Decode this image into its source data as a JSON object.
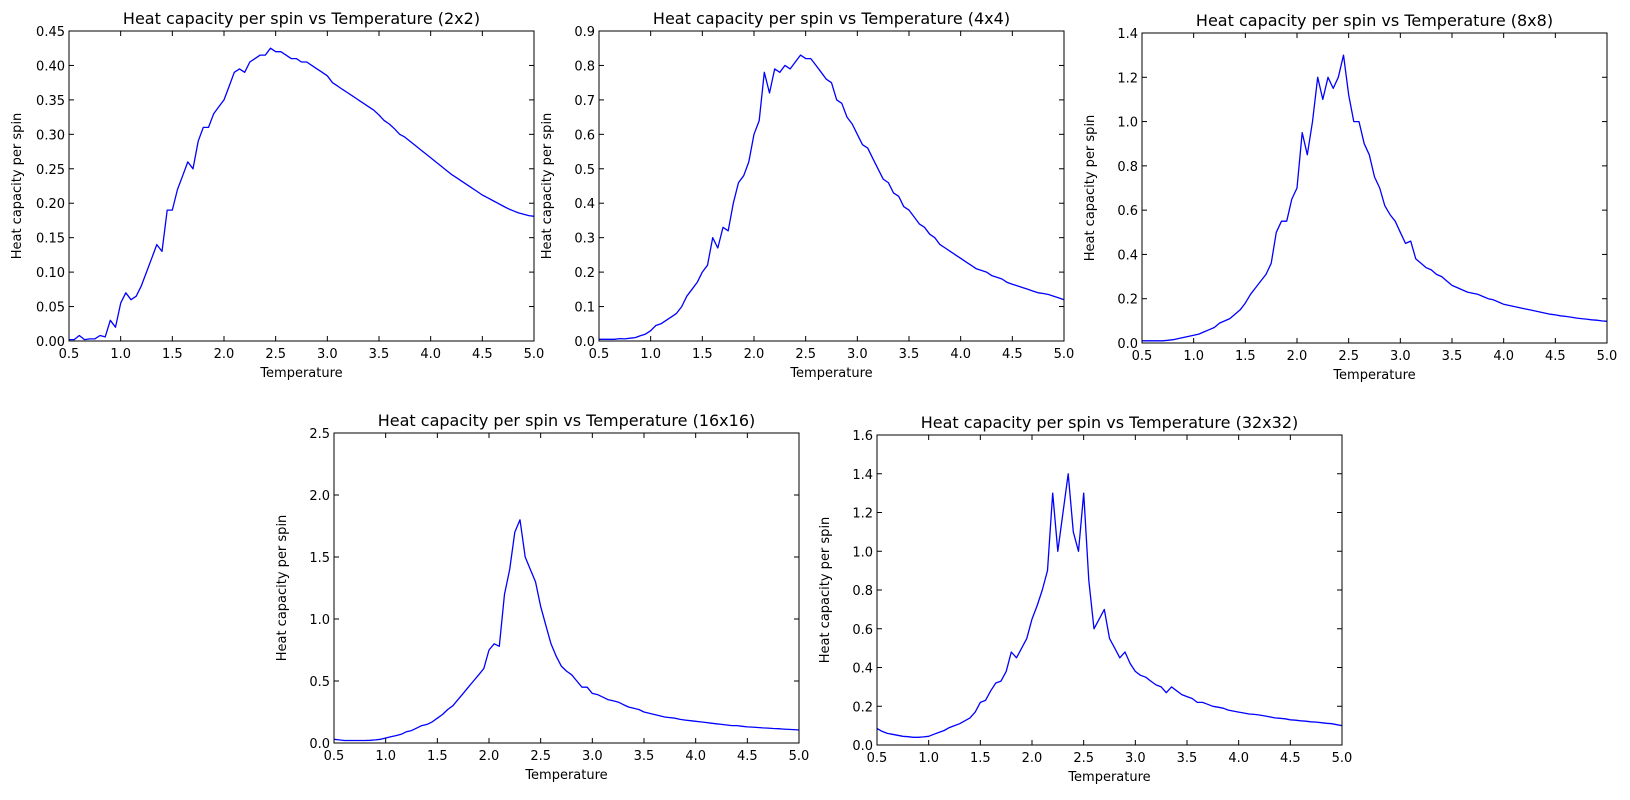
{
  "chart_data": [
    {
      "type": "line",
      "title": "Heat capacity per spin vs Temperature (2x2)",
      "xlabel": "Temperature",
      "ylabel": "Heat capacity per spin",
      "xlim": [
        0.5,
        5.0
      ],
      "ylim": [
        0,
        0.45
      ],
      "xticks": [
        "0.5",
        "1.0",
        "1.5",
        "2.0",
        "2.5",
        "3.0",
        "3.5",
        "4.0",
        "4.5",
        "5.0"
      ],
      "yticks": [
        "0.00",
        "0.05",
        "0.10",
        "0.15",
        "0.20",
        "0.25",
        "0.30",
        "0.35",
        "0.40",
        "0.45"
      ],
      "color": "#0000ff",
      "x_start": 0.5,
      "x_step": 0.05,
      "values": [
        0.002,
        0.002,
        0.008,
        0.002,
        0.003,
        0.003,
        0.008,
        0.006,
        0.03,
        0.02,
        0.055,
        0.07,
        0.06,
        0.065,
        0.08,
        0.1,
        0.12,
        0.14,
        0.13,
        0.19,
        0.19,
        0.22,
        0.24,
        0.26,
        0.25,
        0.29,
        0.31,
        0.31,
        0.33,
        0.34,
        0.35,
        0.37,
        0.39,
        0.395,
        0.39,
        0.405,
        0.41,
        0.415,
        0.415,
        0.425,
        0.42,
        0.42,
        0.415,
        0.41,
        0.41,
        0.405,
        0.405,
        0.4,
        0.395,
        0.39,
        0.385,
        0.375,
        0.37,
        0.365,
        0.36,
        0.355,
        0.35,
        0.345,
        0.34,
        0.335,
        0.328,
        0.32,
        0.315,
        0.308,
        0.3,
        0.296,
        0.29,
        0.284,
        0.278,
        0.272,
        0.266,
        0.26,
        0.254,
        0.248,
        0.242,
        0.237,
        0.232,
        0.227,
        0.222,
        0.217,
        0.212,
        0.208,
        0.204,
        0.2,
        0.196,
        0.192,
        0.189,
        0.186,
        0.184,
        0.182,
        0.181
      ]
    },
    {
      "type": "line",
      "title": "Heat capacity per spin vs Temperature (4x4)",
      "xlabel": "Temperature",
      "ylabel": "Heat capacity per spin",
      "xlim": [
        0.5,
        5.0
      ],
      "ylim": [
        0,
        0.9
      ],
      "xticks": [
        "0.5",
        "1.0",
        "1.5",
        "2.0",
        "2.5",
        "3.0",
        "3.5",
        "4.0",
        "4.5",
        "5.0"
      ],
      "yticks": [
        "0.0",
        "0.1",
        "0.2",
        "0.3",
        "0.4",
        "0.5",
        "0.6",
        "0.7",
        "0.8",
        "0.9"
      ],
      "color": "#0000ff",
      "x_start": 0.5,
      "x_step": 0.05,
      "values": [
        0.005,
        0.005,
        0.005,
        0.005,
        0.007,
        0.006,
        0.008,
        0.01,
        0.015,
        0.02,
        0.03,
        0.045,
        0.05,
        0.06,
        0.07,
        0.08,
        0.1,
        0.13,
        0.15,
        0.17,
        0.2,
        0.22,
        0.3,
        0.27,
        0.33,
        0.32,
        0.4,
        0.46,
        0.48,
        0.52,
        0.6,
        0.64,
        0.78,
        0.72,
        0.79,
        0.78,
        0.8,
        0.79,
        0.81,
        0.83,
        0.82,
        0.82,
        0.8,
        0.78,
        0.76,
        0.75,
        0.7,
        0.69,
        0.65,
        0.63,
        0.6,
        0.57,
        0.56,
        0.53,
        0.5,
        0.47,
        0.46,
        0.43,
        0.42,
        0.39,
        0.38,
        0.36,
        0.34,
        0.33,
        0.31,
        0.3,
        0.28,
        0.27,
        0.26,
        0.25,
        0.24,
        0.23,
        0.22,
        0.21,
        0.205,
        0.2,
        0.19,
        0.185,
        0.18,
        0.17,
        0.165,
        0.16,
        0.155,
        0.15,
        0.145,
        0.14,
        0.138,
        0.135,
        0.13,
        0.125,
        0.12
      ]
    },
    {
      "type": "line",
      "title": "Heat capacity per spin vs Temperature (8x8)",
      "xlabel": "Temperature",
      "ylabel": "Heat capacity per spin",
      "xlim": [
        0.5,
        5.0
      ],
      "ylim": [
        0,
        1.4
      ],
      "xticks": [
        "0.5",
        "1.0",
        "1.5",
        "2.0",
        "2.5",
        "3.0",
        "3.5",
        "4.0",
        "4.5",
        "5.0"
      ],
      "yticks": [
        "0.0",
        "0.2",
        "0.4",
        "0.6",
        "0.8",
        "1.0",
        "1.2",
        "1.4"
      ],
      "color": "#0000ff",
      "x_start": 0.5,
      "x_step": 0.05,
      "values": [
        0.01,
        0.01,
        0.01,
        0.01,
        0.01,
        0.012,
        0.015,
        0.02,
        0.025,
        0.03,
        0.035,
        0.04,
        0.05,
        0.06,
        0.07,
        0.09,
        0.1,
        0.11,
        0.13,
        0.15,
        0.18,
        0.22,
        0.25,
        0.28,
        0.31,
        0.36,
        0.5,
        0.55,
        0.55,
        0.65,
        0.7,
        0.95,
        0.85,
        1.0,
        1.2,
        1.1,
        1.2,
        1.15,
        1.2,
        1.3,
        1.12,
        1.0,
        1.0,
        0.9,
        0.85,
        0.75,
        0.7,
        0.62,
        0.58,
        0.55,
        0.5,
        0.45,
        0.46,
        0.38,
        0.36,
        0.34,
        0.33,
        0.31,
        0.3,
        0.28,
        0.26,
        0.25,
        0.24,
        0.23,
        0.225,
        0.22,
        0.21,
        0.2,
        0.195,
        0.185,
        0.175,
        0.17,
        0.165,
        0.16,
        0.155,
        0.15,
        0.145,
        0.14,
        0.135,
        0.13,
        0.127,
        0.123,
        0.12,
        0.117,
        0.113,
        0.11,
        0.108,
        0.105,
        0.103,
        0.1,
        0.098
      ]
    },
    {
      "type": "line",
      "title": "Heat capacity per spin vs Temperature (16x16)",
      "xlabel": "Temperature",
      "ylabel": "Heat capacity per spin",
      "xlim": [
        0.5,
        5.0
      ],
      "ylim": [
        0,
        2.5
      ],
      "xticks": [
        "0.5",
        "1.0",
        "1.5",
        "2.0",
        "2.5",
        "3.0",
        "3.5",
        "4.0",
        "4.5",
        "5.0"
      ],
      "yticks": [
        "0.0",
        "0.5",
        "1.0",
        "1.5",
        "2.0",
        "2.5"
      ],
      "color": "#0000ff",
      "x_start": 0.5,
      "x_step": 0.05,
      "values": [
        0.03,
        0.025,
        0.02,
        0.02,
        0.02,
        0.02,
        0.02,
        0.022,
        0.025,
        0.03,
        0.04,
        0.05,
        0.06,
        0.07,
        0.09,
        0.1,
        0.12,
        0.14,
        0.15,
        0.17,
        0.2,
        0.23,
        0.27,
        0.3,
        0.35,
        0.4,
        0.45,
        0.5,
        0.55,
        0.6,
        0.75,
        0.8,
        0.78,
        1.2,
        1.4,
        1.7,
        1.8,
        1.5,
        1.4,
        1.3,
        1.1,
        0.95,
        0.8,
        0.7,
        0.62,
        0.58,
        0.55,
        0.5,
        0.45,
        0.45,
        0.4,
        0.39,
        0.37,
        0.35,
        0.34,
        0.33,
        0.31,
        0.29,
        0.28,
        0.27,
        0.25,
        0.24,
        0.23,
        0.22,
        0.21,
        0.205,
        0.2,
        0.19,
        0.185,
        0.18,
        0.175,
        0.17,
        0.165,
        0.16,
        0.155,
        0.15,
        0.145,
        0.14,
        0.14,
        0.135,
        0.13,
        0.128,
        0.125,
        0.122,
        0.12,
        0.117,
        0.115,
        0.112,
        0.11,
        0.108,
        0.105
      ]
    },
    {
      "type": "line",
      "title": "Heat capacity per spin vs Temperature (32x32)",
      "xlabel": "Temperature",
      "ylabel": "Heat capacity per spin",
      "xlim": [
        0.5,
        5.0
      ],
      "ylim": [
        0,
        1.6
      ],
      "xticks": [
        "0.5",
        "1.0",
        "1.5",
        "2.0",
        "2.5",
        "3.0",
        "3.5",
        "4.0",
        "4.5",
        "5.0"
      ],
      "yticks": [
        "0.0",
        "0.2",
        "0.4",
        "0.6",
        "0.8",
        "1.0",
        "1.2",
        "1.4",
        "1.6"
      ],
      "color": "#0000ff",
      "x_start": 0.5,
      "x_step": 0.05,
      "values": [
        0.085,
        0.07,
        0.06,
        0.055,
        0.05,
        0.045,
        0.043,
        0.04,
        0.04,
        0.042,
        0.045,
        0.055,
        0.065,
        0.075,
        0.09,
        0.1,
        0.11,
        0.125,
        0.14,
        0.17,
        0.22,
        0.23,
        0.28,
        0.32,
        0.33,
        0.38,
        0.48,
        0.45,
        0.5,
        0.55,
        0.65,
        0.72,
        0.8,
        0.9,
        1.3,
        1.0,
        1.2,
        1.4,
        1.1,
        1.0,
        1.3,
        0.85,
        0.6,
        0.65,
        0.7,
        0.55,
        0.5,
        0.45,
        0.48,
        0.42,
        0.38,
        0.36,
        0.35,
        0.33,
        0.31,
        0.3,
        0.27,
        0.3,
        0.28,
        0.26,
        0.25,
        0.24,
        0.22,
        0.22,
        0.21,
        0.2,
        0.195,
        0.19,
        0.18,
        0.175,
        0.17,
        0.165,
        0.16,
        0.158,
        0.155,
        0.15,
        0.145,
        0.14,
        0.138,
        0.135,
        0.13,
        0.128,
        0.125,
        0.123,
        0.12,
        0.118,
        0.115,
        0.112,
        0.11,
        0.105,
        0.1
      ]
    }
  ]
}
